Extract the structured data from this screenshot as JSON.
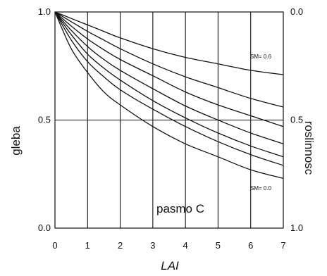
{
  "chart_data": {
    "type": "line",
    "xlabel": "LAI",
    "ylabel_left": "gleba",
    "ylabel_right": "roslinnosc",
    "xlim": [
      0,
      7
    ],
    "ylim_left": [
      0.0,
      1.0
    ],
    "ylim_right": [
      1.0,
      0.0
    ],
    "x_ticks": [
      "0",
      "1",
      "2",
      "3",
      "4",
      "5",
      "6",
      "7"
    ],
    "y_ticks_left": [
      "1.0",
      "0.5",
      "0.0"
    ],
    "y_ticks_right": [
      "0.0",
      "0.5",
      "1.0"
    ],
    "grid": {
      "vertical": true,
      "horizontal_at": [
        0.5
      ]
    },
    "annotation": "pasmo C",
    "curve_labels": [
      {
        "text": "SM= 0.6",
        "series": 0
      },
      {
        "text": "SM= 0.0",
        "series": 6
      }
    ],
    "x": [
      0,
      0.5,
      1,
      1.5,
      2,
      3,
      4,
      5,
      6,
      7
    ],
    "series": [
      {
        "values": [
          1.0,
          0.97,
          0.94,
          0.91,
          0.88,
          0.83,
          0.79,
          0.76,
          0.73,
          0.71
        ]
      },
      {
        "values": [
          1.0,
          0.955,
          0.91,
          0.87,
          0.83,
          0.76,
          0.7,
          0.65,
          0.6,
          0.56
        ]
      },
      {
        "values": [
          1.0,
          0.935,
          0.875,
          0.825,
          0.78,
          0.705,
          0.63,
          0.57,
          0.52,
          0.47
        ]
      },
      {
        "values": [
          1.0,
          0.915,
          0.84,
          0.78,
          0.73,
          0.645,
          0.565,
          0.5,
          0.44,
          0.39
        ]
      },
      {
        "values": [
          1.0,
          0.895,
          0.805,
          0.74,
          0.685,
          0.59,
          0.51,
          0.44,
          0.38,
          0.33
        ]
      },
      {
        "values": [
          1.0,
          0.87,
          0.77,
          0.7,
          0.64,
          0.55,
          0.47,
          0.4,
          0.34,
          0.29
        ]
      },
      {
        "values": [
          1.0,
          0.83,
          0.72,
          0.63,
          0.57,
          0.47,
          0.39,
          0.33,
          0.27,
          0.23
        ]
      }
    ]
  }
}
